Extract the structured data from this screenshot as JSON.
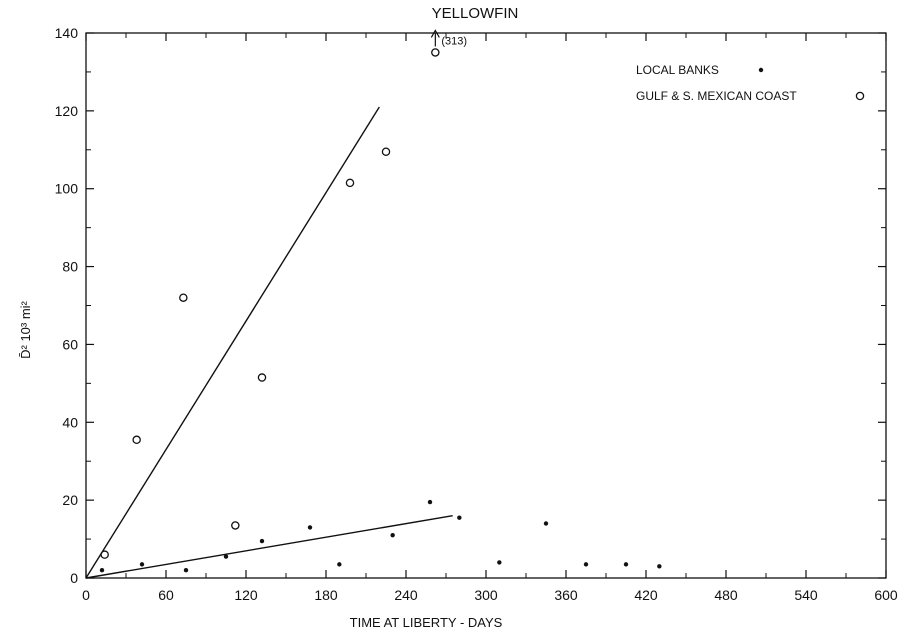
{
  "chart_data": {
    "type": "scatter",
    "title": "YELLOWFIN",
    "xlabel": "TIME AT LIBERTY - DAYS",
    "ylabel": "D̄²  10³ mi²",
    "xlim": [
      0,
      600
    ],
    "ylim": [
      0,
      140
    ],
    "xticks": [
      0,
      60,
      120,
      180,
      240,
      300,
      360,
      420,
      480,
      540,
      600
    ],
    "yticks": [
      0,
      20,
      40,
      60,
      80,
      100,
      120,
      140
    ],
    "grid": false,
    "legend_position": "top-right",
    "series": [
      {
        "name": "LOCAL BANKS",
        "marker": "filled-dot",
        "points": [
          [
            12,
            2
          ],
          [
            42,
            3.5
          ],
          [
            75,
            2
          ],
          [
            105,
            5.5
          ],
          [
            132,
            9.5
          ],
          [
            168,
            13
          ],
          [
            190,
            3.5
          ],
          [
            230,
            11
          ],
          [
            258,
            19.5
          ],
          [
            280,
            15.5
          ],
          [
            310,
            4
          ],
          [
            345,
            14
          ],
          [
            375,
            3.5
          ],
          [
            405,
            3.5
          ],
          [
            430,
            3
          ]
        ],
        "fit_line": [
          [
            0,
            0
          ],
          [
            275,
            16
          ]
        ]
      },
      {
        "name": "GULF & S. MEXICAN COAST",
        "marker": "open-circle",
        "points": [
          [
            14,
            6
          ],
          [
            38,
            35.5
          ],
          [
            73,
            72
          ],
          [
            112,
            13.5
          ],
          [
            132,
            51.5
          ],
          [
            198,
            101.5
          ],
          [
            225,
            109.5
          ],
          [
            262,
            135
          ]
        ],
        "fit_line": [
          [
            0,
            0
          ],
          [
            220,
            121
          ]
        ]
      }
    ],
    "annotations": [
      {
        "x": 262,
        "y": 135,
        "text": "(313)",
        "note_arrow": "up"
      }
    ]
  }
}
